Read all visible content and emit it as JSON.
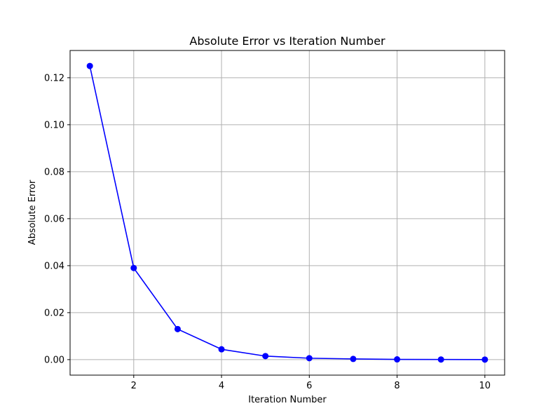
{
  "chart_data": {
    "type": "line",
    "title": "Absolute Error vs Iteration Number",
    "xlabel": "Iteration Number",
    "ylabel": "Absolute Error",
    "xlim": [
      0.55,
      10.45
    ],
    "ylim": [
      -0.0066,
      0.1316
    ],
    "x_ticks": [
      2,
      4,
      6,
      8,
      10
    ],
    "x_tick_labels": [
      "2",
      "4",
      "6",
      "8",
      "10"
    ],
    "y_ticks": [
      0.0,
      0.02,
      0.04,
      0.06,
      0.08,
      0.1,
      0.12
    ],
    "y_tick_labels": [
      "0.00",
      "0.02",
      "0.04",
      "0.06",
      "0.08",
      "0.10",
      "0.12"
    ],
    "grid": true,
    "series": [
      {
        "color": "#0000ff",
        "marker": "circle",
        "x": [
          1,
          2,
          3,
          4,
          5,
          6,
          7,
          8,
          9,
          10
        ],
        "y": [
          0.125,
          0.039,
          0.013,
          0.0044,
          0.0015,
          0.0006,
          0.0003,
          0.0001,
          5e-05,
          2e-05
        ]
      }
    ]
  }
}
